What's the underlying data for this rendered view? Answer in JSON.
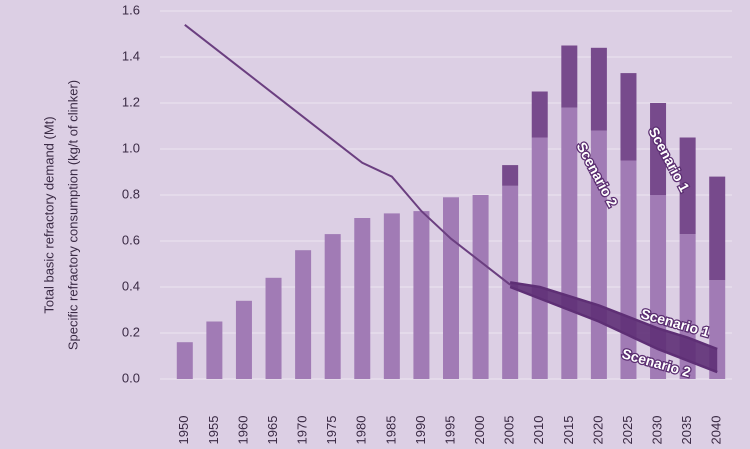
{
  "chart_data": {
    "type": "bar",
    "y_label": "Total basic refractory demand (Mt)",
    "y_label_2": "Specific refractory consumption (kg/t of clinker)",
    "categories": [
      "1950",
      "1955",
      "1960",
      "1965",
      "1970",
      "1975",
      "1980",
      "1985",
      "1990",
      "1995",
      "2000",
      "2005",
      "2010",
      "2015",
      "2020",
      "2025",
      "2030",
      "2035",
      "2040"
    ],
    "ylim": [
      0,
      1.6
    ],
    "yticks": [
      {
        "value": 0,
        "label": "0.0"
      },
      0.2,
      0.4,
      0.6,
      0.8,
      {
        "value": 1,
        "label": "1.0"
      },
      1.2,
      1.4,
      1.6
    ],
    "grid": true,
    "series": [
      {
        "name": "Scenario 2",
        "color": "#a17bb5",
        "values": [
          0.16,
          0.25,
          0.34,
          0.44,
          0.56,
          0.63,
          0.7,
          0.72,
          0.73,
          0.79,
          0.8,
          0.84,
          1.05,
          1.18,
          1.08,
          0.95,
          0.8,
          0.63,
          0.43
        ]
      },
      {
        "name": "Scenario 1",
        "color": "#774a8c",
        "values": [
          null,
          null,
          null,
          null,
          null,
          null,
          null,
          null,
          null,
          null,
          null,
          0.09,
          0.2,
          0.27,
          0.36,
          0.38,
          0.4,
          0.42,
          0.45
        ]
      }
    ],
    "lines": [
      {
        "color": "#6b3f80",
        "values": [
          1.54,
          1.44,
          1.34,
          1.24,
          1.14,
          1.04,
          0.94,
          0.88,
          0.73,
          0.61,
          0.51,
          0.41,
          null,
          null,
          null,
          null,
          null,
          null,
          null
        ]
      },
      {
        "name": "Scenario 1",
        "color": "#5e2f75",
        "values": [
          null,
          null,
          null,
          null,
          null,
          null,
          null,
          null,
          null,
          null,
          null,
          0.42,
          0.4,
          0.36,
          0.32,
          0.27,
          0.22,
          0.18,
          0.13
        ]
      },
      {
        "name": "Scenario 2",
        "color": "#5e2f75",
        "values": [
          null,
          null,
          null,
          null,
          null,
          null,
          null,
          null,
          null,
          null,
          null,
          0.4,
          0.35,
          0.3,
          0.25,
          0.19,
          0.13,
          0.08,
          0.03
        ]
      }
    ]
  }
}
